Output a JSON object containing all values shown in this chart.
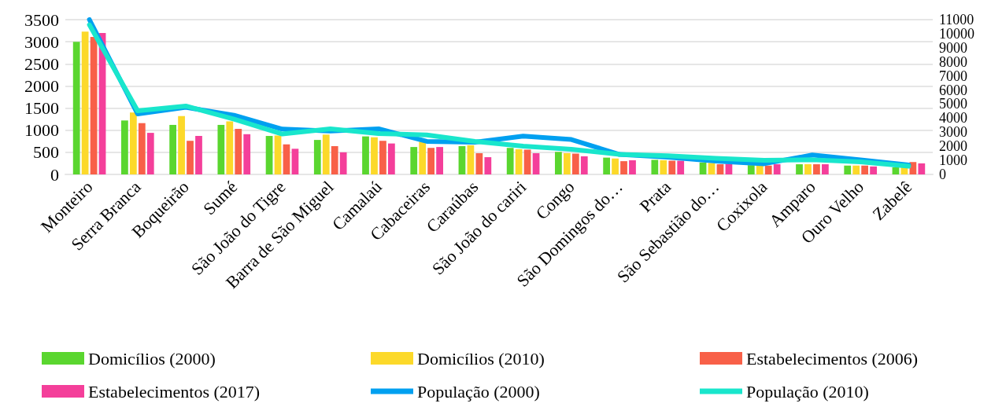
{
  "chart_data": {
    "type": "bar",
    "categories": [
      "Monteiro",
      "Serra Branca",
      "Boqueirão",
      "Sumé",
      "São João do Tigre",
      "Barra de São Miguel",
      "Camalaú",
      "Cabaceiras",
      "Caraúbas",
      "São João do cariri",
      "Congo",
      "São Domingos do…",
      "Prata",
      "São Sebastião do…",
      "Coxixola",
      "Amparo",
      "Ouro Velho",
      "Zabelê"
    ],
    "series": [
      {
        "name": "Domicílios (2000)",
        "color": "#5ad62f",
        "values": [
          3000,
          1220,
          1120,
          1120,
          870,
          780,
          860,
          620,
          640,
          600,
          510,
          380,
          330,
          270,
          210,
          230,
          200,
          160
        ]
      },
      {
        "name": "Domicílios (2010)",
        "color": "#fcd92a",
        "values": [
          3230,
          1400,
          1320,
          1200,
          880,
          900,
          840,
          740,
          660,
          570,
          480,
          360,
          320,
          260,
          200,
          230,
          200,
          160
        ]
      },
      {
        "name": "Estabelecimentos (2006)",
        "color": "#f86048",
        "values": [
          3110,
          1160,
          760,
          1030,
          680,
          640,
          760,
          600,
          480,
          560,
          470,
          300,
          310,
          230,
          200,
          230,
          200,
          280
        ]
      },
      {
        "name": "Estabelecimentos (2017)",
        "color": "#f43f9a",
        "values": [
          3200,
          940,
          870,
          910,
          580,
          500,
          700,
          620,
          390,
          480,
          410,
          320,
          310,
          240,
          230,
          230,
          180,
          250
        ]
      },
      {
        "name": "População (2000)",
        "type": "line",
        "axis": "y2",
        "color": "#00a0f0",
        "values": [
          11000,
          4300,
          4770,
          4210,
          3220,
          3090,
          3240,
          2350,
          2290,
          2720,
          2480,
          1420,
          1230,
          950,
          760,
          1380,
          1040,
          670
        ]
      },
      {
        "name": "População (2010)",
        "type": "line",
        "axis": "y2",
        "color": "#19e6cc",
        "values": [
          10630,
          4520,
          4860,
          3930,
          2870,
          3240,
          2900,
          2810,
          2350,
          2010,
          1790,
          1420,
          1320,
          1140,
          1010,
          1040,
          890,
          580
        ]
      }
    ],
    "ylim": [
      0,
      3500
    ],
    "yticks": [
      0,
      500,
      1000,
      1500,
      2000,
      2500,
      3000,
      3500
    ],
    "y2lim": [
      0,
      11000
    ],
    "y2ticks": [
      0,
      1000,
      2000,
      3000,
      4000,
      5000,
      6000,
      7000,
      8000,
      9000,
      10000,
      11000
    ],
    "grid": "y",
    "legend": "bottom",
    "marker": "none",
    "line_style": "solid"
  }
}
